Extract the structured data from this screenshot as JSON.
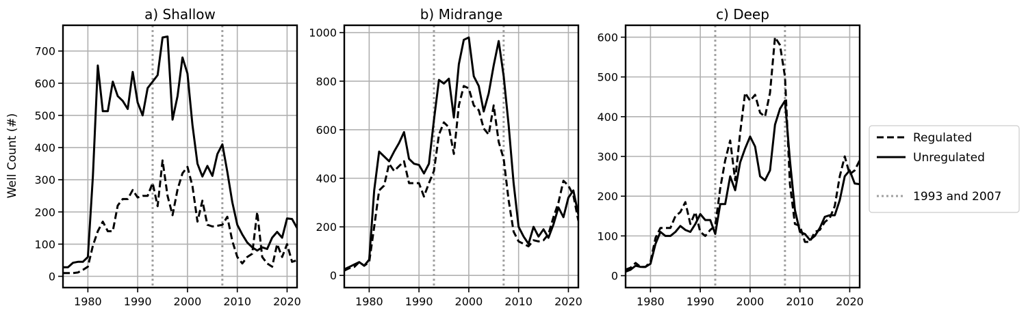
{
  "chart_data": {
    "type": "line",
    "ylabel": "Well Count (#)",
    "legend": {
      "placement": "right",
      "entries": [
        {
          "key": "regulated",
          "label": "Regulated",
          "style": "dashed",
          "color": "#000000"
        },
        {
          "key": "unregulated",
          "label": "Unregulated",
          "style": "solid",
          "color": "#000000"
        },
        {
          "key": "ref",
          "label": "1993 and 2007",
          "style": "dotted",
          "color": "#a0a0a0"
        }
      ]
    },
    "reference_lines": [
      1993,
      2007
    ],
    "xlim": [
      1975,
      2022
    ],
    "xticks": [
      1980,
      1990,
      2000,
      2010,
      2020
    ],
    "grid": true,
    "panels": [
      {
        "title": "a) Shallow",
        "ylim": [
          -35,
          780
        ],
        "yticks": [
          0,
          100,
          200,
          300,
          400,
          500,
          600,
          700
        ],
        "series": [
          {
            "key": "unregulated",
            "x": [
              1975,
              1976,
              1977,
              1978,
              1979,
              1980,
              1981,
              1982,
              1983,
              1984,
              1985,
              1986,
              1987,
              1988,
              1989,
              1990,
              1991,
              1992,
              1993,
              1994,
              1995,
              1996,
              1997,
              1998,
              1999,
              2000,
              2001,
              2002,
              2003,
              2004,
              2005,
              2006,
              2007,
              2008,
              2009,
              2010,
              2011,
              2012,
              2013,
              2014,
              2015,
              2016,
              2017,
              2018,
              2019,
              2020,
              2021,
              2022
            ],
            "y": [
              28,
              28,
              42,
              45,
              45,
              60,
              310,
              655,
              513,
              513,
              605,
              560,
              545,
              520,
              635,
              540,
              500,
              585,
              605,
              625,
              742,
              745,
              487,
              560,
              680,
              630,
              470,
              350,
              310,
              343,
              312,
              380,
              410,
              325,
              230,
              160,
              130,
              105,
              90,
              80,
              90,
              85,
              120,
              138,
              120,
              180,
              178,
              150
            ]
          },
          {
            "key": "regulated",
            "x": [
              1975,
              1976,
              1977,
              1978,
              1979,
              1980,
              1981,
              1982,
              1983,
              1984,
              1985,
              1986,
              1987,
              1988,
              1989,
              1990,
              1991,
              1992,
              1993,
              1994,
              1995,
              1996,
              1997,
              1998,
              1999,
              2000,
              2001,
              2002,
              2003,
              2004,
              2005,
              2006,
              2007,
              2008,
              2009,
              2010,
              2011,
              2012,
              2013,
              2014,
              2015,
              2016,
              2017,
              2018,
              2019,
              2020,
              2021,
              2022
            ],
            "y": [
              10,
              10,
              10,
              12,
              20,
              30,
              95,
              140,
              170,
              140,
              140,
              220,
              240,
              240,
              268,
              245,
              250,
              250,
              290,
              218,
              360,
              250,
              190,
              270,
              320,
              340,
              280,
              170,
              235,
              160,
              155,
              157,
              160,
              185,
              110,
              60,
              40,
              60,
              70,
              200,
              60,
              40,
              30,
              100,
              60,
              100,
              45,
              50
            ]
          }
        ]
      },
      {
        "title": "b) Midrange",
        "ylim": [
          -50,
          1030
        ],
        "yticks": [
          0,
          200,
          400,
          600,
          800,
          1000
        ],
        "series": [
          {
            "key": "unregulated",
            "x": [
              1975,
              1976,
              1977,
              1978,
              1979,
              1980,
              1981,
              1982,
              1983,
              1984,
              1985,
              1986,
              1987,
              1988,
              1989,
              1990,
              1991,
              1992,
              1993,
              1994,
              1995,
              1996,
              1997,
              1998,
              1999,
              2000,
              2001,
              2002,
              2003,
              2004,
              2005,
              2006,
              2007,
              2008,
              2009,
              2010,
              2011,
              2012,
              2013,
              2014,
              2015,
              2016,
              2017,
              2018,
              2019,
              2020,
              2021,
              2022
            ],
            "y": [
              25,
              35,
              45,
              55,
              40,
              65,
              350,
              510,
              490,
              470,
              510,
              545,
              590,
              480,
              460,
              455,
              420,
              460,
              640,
              805,
              790,
              810,
              650,
              870,
              970,
              980,
              820,
              780,
              675,
              750,
              865,
              965,
              820,
              620,
              380,
              200,
              160,
              130,
              200,
              160,
              190,
              155,
              210,
              280,
              240,
              320,
              350,
              250
            ]
          },
          {
            "key": "regulated",
            "x": [
              1975,
              1976,
              1977,
              1978,
              1979,
              1980,
              1981,
              1982,
              1983,
              1984,
              1985,
              1986,
              1987,
              1988,
              1989,
              1990,
              1991,
              1992,
              1993,
              1994,
              1995,
              1996,
              1997,
              1998,
              1999,
              2000,
              2001,
              2002,
              2003,
              2004,
              2005,
              2006,
              2007,
              2008,
              2009,
              2010,
              2011,
              2012,
              2013,
              2014,
              2015,
              2016,
              2017,
              2018,
              2019,
              2020,
              2021,
              2022
            ],
            "y": [
              20,
              30,
              35,
              55,
              40,
              55,
              200,
              350,
              370,
              460,
              430,
              450,
              470,
              380,
              380,
              380,
              325,
              380,
              430,
              580,
              630,
              610,
              500,
              700,
              780,
              770,
              700,
              680,
              605,
              580,
              700,
              550,
              480,
              310,
              180,
              140,
              130,
              120,
              145,
              140,
              145,
              170,
              240,
              300,
              390,
              370,
              330,
              225
            ]
          }
        ]
      },
      {
        "title": "c) Deep",
        "ylim": [
          -30,
          630
        ],
        "yticks": [
          0,
          100,
          200,
          300,
          400,
          500,
          600
        ],
        "series": [
          {
            "key": "unregulated",
            "x": [
              1975,
              1976,
              1977,
              1978,
              1979,
              1980,
              1981,
              1982,
              1983,
              1984,
              1985,
              1986,
              1987,
              1988,
              1989,
              1990,
              1991,
              1992,
              1993,
              1994,
              1995,
              1996,
              1997,
              1998,
              1999,
              2000,
              2001,
              2002,
              2003,
              2004,
              2005,
              2006,
              2007,
              2008,
              2009,
              2010,
              2011,
              2012,
              2013,
              2014,
              2015,
              2016,
              2017,
              2018,
              2019,
              2020,
              2021,
              2022
            ],
            "y": [
              10,
              15,
              25,
              22,
              22,
              30,
              80,
              110,
              100,
              100,
              110,
              125,
              115,
              110,
              130,
              155,
              140,
              140,
              105,
              180,
              180,
              250,
              215,
              285,
              320,
              350,
              325,
              250,
              240,
              265,
              380,
              420,
              440,
              290,
              165,
              110,
              105,
              90,
              100,
              120,
              148,
              152,
              152,
              190,
              250,
              265,
              232,
              230
            ]
          },
          {
            "key": "regulated",
            "x": [
              1975,
              1976,
              1977,
              1978,
              1979,
              1980,
              1981,
              1982,
              1983,
              1984,
              1985,
              1986,
              1987,
              1988,
              1989,
              1990,
              1991,
              1992,
              1993,
              1994,
              1995,
              1996,
              1997,
              1998,
              1999,
              2000,
              2001,
              2002,
              2003,
              2004,
              2005,
              2006,
              2007,
              2008,
              2009,
              2010,
              2011,
              2012,
              2013,
              2014,
              2015,
              2016,
              2017,
              2018,
              2019,
              2020,
              2021,
              2022
            ],
            "y": [
              15,
              20,
              32,
              22,
              22,
              35,
              95,
              120,
              120,
              120,
              150,
              160,
              185,
              130,
              160,
              110,
              100,
              115,
              125,
              220,
              290,
              340,
              240,
              360,
              460,
              440,
              455,
              410,
              400,
              460,
              600,
              580,
              500,
              230,
              130,
              125,
              85,
              85,
              110,
              115,
              135,
              145,
              175,
              250,
              300,
              255,
              265,
              290
            ]
          }
        ]
      }
    ]
  }
}
